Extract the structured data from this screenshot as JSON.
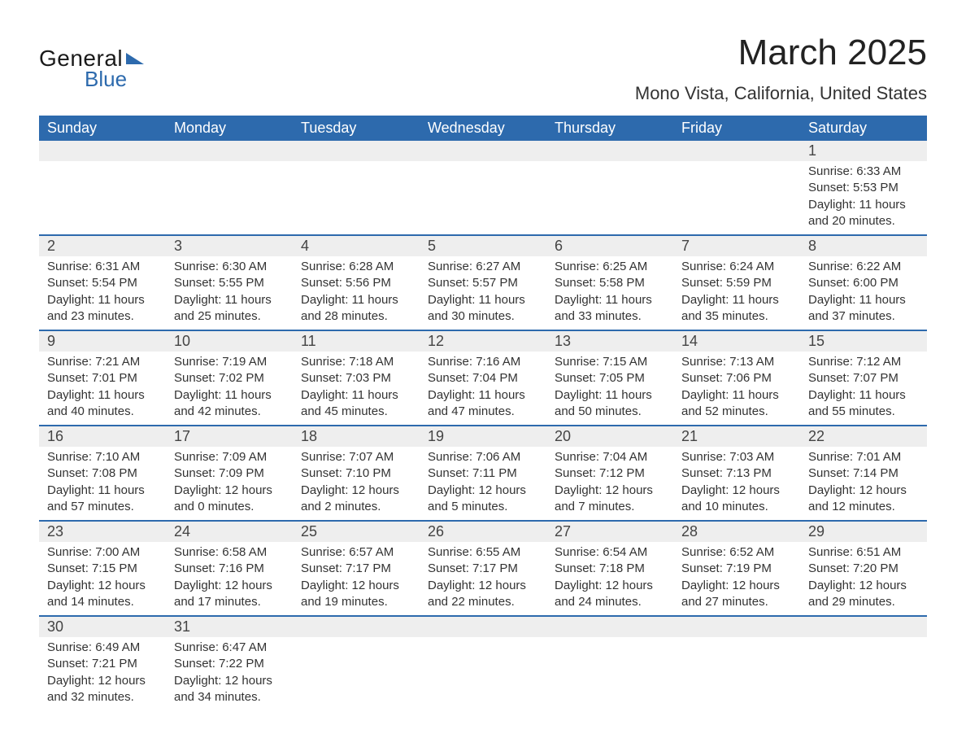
{
  "logo": {
    "text_general": "General",
    "text_blue": "Blue",
    "mark_color": "#2d6aad"
  },
  "title": {
    "month": "March 2025",
    "location": "Mono Vista, California, United States"
  },
  "colors": {
    "header_bg": "#2d6aad",
    "header_text": "#ffffff",
    "daynum_bg": "#eeeeee",
    "week_border": "#2d6aad",
    "body_text": "#333333",
    "page_bg": "#ffffff"
  },
  "fonts": {
    "month_title_pt": 44,
    "location_pt": 22,
    "header_cell_pt": 18,
    "daynum_pt": 18,
    "daydata_pt": 15
  },
  "day_labels": [
    "Sunday",
    "Monday",
    "Tuesday",
    "Wednesday",
    "Thursday",
    "Friday",
    "Saturday"
  ],
  "weeks": [
    {
      "nums": [
        "",
        "",
        "",
        "",
        "",
        "",
        "1"
      ],
      "sunrise": [
        "",
        "",
        "",
        "",
        "",
        "",
        "Sunrise: 6:33 AM"
      ],
      "sunset": [
        "",
        "",
        "",
        "",
        "",
        "",
        "Sunset: 5:53 PM"
      ],
      "daylight1": [
        "",
        "",
        "",
        "",
        "",
        "",
        "Daylight: 11 hours"
      ],
      "daylight2": [
        "",
        "",
        "",
        "",
        "",
        "",
        "and 20 minutes."
      ]
    },
    {
      "nums": [
        "2",
        "3",
        "4",
        "5",
        "6",
        "7",
        "8"
      ],
      "sunrise": [
        "Sunrise: 6:31 AM",
        "Sunrise: 6:30 AM",
        "Sunrise: 6:28 AM",
        "Sunrise: 6:27 AM",
        "Sunrise: 6:25 AM",
        "Sunrise: 6:24 AM",
        "Sunrise: 6:22 AM"
      ],
      "sunset": [
        "Sunset: 5:54 PM",
        "Sunset: 5:55 PM",
        "Sunset: 5:56 PM",
        "Sunset: 5:57 PM",
        "Sunset: 5:58 PM",
        "Sunset: 5:59 PM",
        "Sunset: 6:00 PM"
      ],
      "daylight1": [
        "Daylight: 11 hours",
        "Daylight: 11 hours",
        "Daylight: 11 hours",
        "Daylight: 11 hours",
        "Daylight: 11 hours",
        "Daylight: 11 hours",
        "Daylight: 11 hours"
      ],
      "daylight2": [
        "and 23 minutes.",
        "and 25 minutes.",
        "and 28 minutes.",
        "and 30 minutes.",
        "and 33 minutes.",
        "and 35 minutes.",
        "and 37 minutes."
      ]
    },
    {
      "nums": [
        "9",
        "10",
        "11",
        "12",
        "13",
        "14",
        "15"
      ],
      "sunrise": [
        "Sunrise: 7:21 AM",
        "Sunrise: 7:19 AM",
        "Sunrise: 7:18 AM",
        "Sunrise: 7:16 AM",
        "Sunrise: 7:15 AM",
        "Sunrise: 7:13 AM",
        "Sunrise: 7:12 AM"
      ],
      "sunset": [
        "Sunset: 7:01 PM",
        "Sunset: 7:02 PM",
        "Sunset: 7:03 PM",
        "Sunset: 7:04 PM",
        "Sunset: 7:05 PM",
        "Sunset: 7:06 PM",
        "Sunset: 7:07 PM"
      ],
      "daylight1": [
        "Daylight: 11 hours",
        "Daylight: 11 hours",
        "Daylight: 11 hours",
        "Daylight: 11 hours",
        "Daylight: 11 hours",
        "Daylight: 11 hours",
        "Daylight: 11 hours"
      ],
      "daylight2": [
        "and 40 minutes.",
        "and 42 minutes.",
        "and 45 minutes.",
        "and 47 minutes.",
        "and 50 minutes.",
        "and 52 minutes.",
        "and 55 minutes."
      ]
    },
    {
      "nums": [
        "16",
        "17",
        "18",
        "19",
        "20",
        "21",
        "22"
      ],
      "sunrise": [
        "Sunrise: 7:10 AM",
        "Sunrise: 7:09 AM",
        "Sunrise: 7:07 AM",
        "Sunrise: 7:06 AM",
        "Sunrise: 7:04 AM",
        "Sunrise: 7:03 AM",
        "Sunrise: 7:01 AM"
      ],
      "sunset": [
        "Sunset: 7:08 PM",
        "Sunset: 7:09 PM",
        "Sunset: 7:10 PM",
        "Sunset: 7:11 PM",
        "Sunset: 7:12 PM",
        "Sunset: 7:13 PM",
        "Sunset: 7:14 PM"
      ],
      "daylight1": [
        "Daylight: 11 hours",
        "Daylight: 12 hours",
        "Daylight: 12 hours",
        "Daylight: 12 hours",
        "Daylight: 12 hours",
        "Daylight: 12 hours",
        "Daylight: 12 hours"
      ],
      "daylight2": [
        "and 57 minutes.",
        "and 0 minutes.",
        "and 2 minutes.",
        "and 5 minutes.",
        "and 7 minutes.",
        "and 10 minutes.",
        "and 12 minutes."
      ]
    },
    {
      "nums": [
        "23",
        "24",
        "25",
        "26",
        "27",
        "28",
        "29"
      ],
      "sunrise": [
        "Sunrise: 7:00 AM",
        "Sunrise: 6:58 AM",
        "Sunrise: 6:57 AM",
        "Sunrise: 6:55 AM",
        "Sunrise: 6:54 AM",
        "Sunrise: 6:52 AM",
        "Sunrise: 6:51 AM"
      ],
      "sunset": [
        "Sunset: 7:15 PM",
        "Sunset: 7:16 PM",
        "Sunset: 7:17 PM",
        "Sunset: 7:17 PM",
        "Sunset: 7:18 PM",
        "Sunset: 7:19 PM",
        "Sunset: 7:20 PM"
      ],
      "daylight1": [
        "Daylight: 12 hours",
        "Daylight: 12 hours",
        "Daylight: 12 hours",
        "Daylight: 12 hours",
        "Daylight: 12 hours",
        "Daylight: 12 hours",
        "Daylight: 12 hours"
      ],
      "daylight2": [
        "and 14 minutes.",
        "and 17 minutes.",
        "and 19 minutes.",
        "and 22 minutes.",
        "and 24 minutes.",
        "and 27 minutes.",
        "and 29 minutes."
      ]
    },
    {
      "nums": [
        "30",
        "31",
        "",
        "",
        "",
        "",
        ""
      ],
      "sunrise": [
        "Sunrise: 6:49 AM",
        "Sunrise: 6:47 AM",
        "",
        "",
        "",
        "",
        ""
      ],
      "sunset": [
        "Sunset: 7:21 PM",
        "Sunset: 7:22 PM",
        "",
        "",
        "",
        "",
        ""
      ],
      "daylight1": [
        "Daylight: 12 hours",
        "Daylight: 12 hours",
        "",
        "",
        "",
        "",
        ""
      ],
      "daylight2": [
        "and 32 minutes.",
        "and 34 minutes.",
        "",
        "",
        "",
        "",
        ""
      ]
    }
  ]
}
